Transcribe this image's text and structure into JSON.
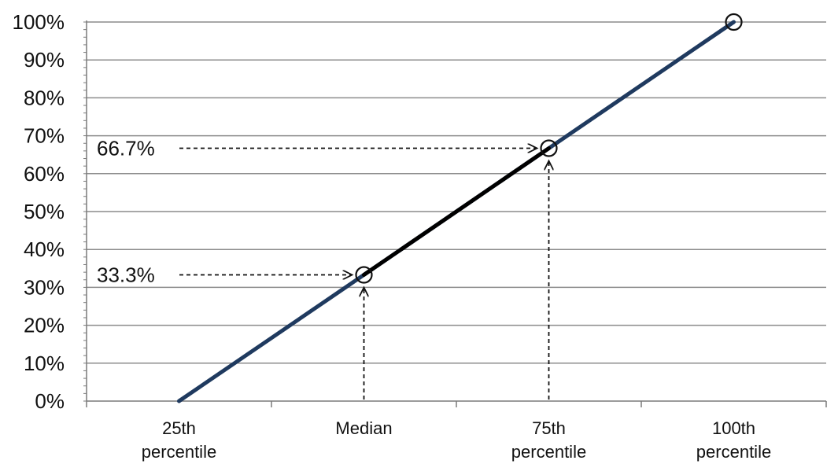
{
  "chart_data": {
    "type": "line",
    "title": "",
    "xlabel": "",
    "ylabel": "",
    "categories": [
      "25th\npercentile",
      "Median",
      "75th\npercentile",
      "100th\npercentile"
    ],
    "y_ticks": [
      "0%",
      "10%",
      "20%",
      "30%",
      "40%",
      "50%",
      "60%",
      "70%",
      "80%",
      "90%",
      "100%"
    ],
    "ylim": [
      0,
      100
    ],
    "grid": true,
    "legend": "none",
    "series": [
      {
        "x": [
          "25th\npercentile",
          "Median",
          "75th\npercentile",
          "100th\npercentile"
        ],
        "values": [
          0,
          33.3,
          66.7,
          100
        ],
        "color": "#1f3a5f"
      }
    ],
    "highlight_segment": {
      "from": "Median",
      "to": "75th\npercentile",
      "color": "#000000"
    },
    "markers": [
      {
        "x": "Median",
        "value": 33.3
      },
      {
        "x": "75th\npercentile",
        "value": 66.7
      },
      {
        "x": "100th\npercentile",
        "value": 100
      }
    ],
    "annotations": [
      {
        "label": "33.3%",
        "value": 33.3,
        "x": "Median"
      },
      {
        "label": "66.7%",
        "value": 66.7,
        "x": "75th\npercentile"
      }
    ]
  }
}
